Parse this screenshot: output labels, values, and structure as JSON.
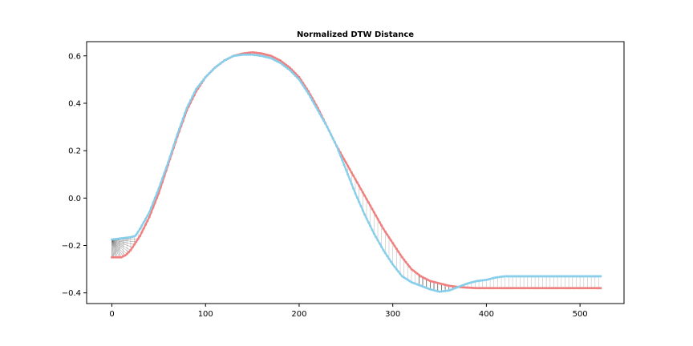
{
  "chart_data": {
    "type": "line",
    "title": "Normalized DTW Distance",
    "xlabel": "",
    "ylabel": "",
    "xlim": [
      -27,
      547
    ],
    "ylim": [
      -0.445,
      0.66
    ],
    "xticks": [
      0,
      100,
      200,
      300,
      400,
      500
    ],
    "yticks": [
      -0.4,
      -0.2,
      0.0,
      0.2,
      0.4,
      0.6
    ],
    "grid": false,
    "legend": "none",
    "colors": {
      "series_a": "#f08080",
      "series_b": "#87ceeb",
      "alignment": "#bbbbbb",
      "alignment_dense": "#222222"
    },
    "series": [
      {
        "x": [
          0,
          10,
          15,
          20,
          25,
          30,
          40,
          50,
          60,
          70,
          80,
          90,
          100,
          110,
          120,
          130,
          140,
          150,
          160,
          170,
          180,
          190,
          200,
          210,
          220,
          230,
          240,
          250,
          260,
          270,
          280,
          290,
          300,
          310,
          320,
          330,
          340,
          350,
          360,
          370,
          380,
          390,
          400,
          420,
          450,
          480,
          500,
          522
        ],
        "y": [
          -0.25,
          -0.25,
          -0.24,
          -0.22,
          -0.19,
          -0.16,
          -0.08,
          0.02,
          0.14,
          0.26,
          0.37,
          0.45,
          0.51,
          0.55,
          0.58,
          0.6,
          0.61,
          0.615,
          0.61,
          0.6,
          0.58,
          0.55,
          0.51,
          0.45,
          0.38,
          0.3,
          0.22,
          0.15,
          0.08,
          0.01,
          -0.06,
          -0.13,
          -0.19,
          -0.25,
          -0.3,
          -0.33,
          -0.35,
          -0.36,
          -0.37,
          -0.375,
          -0.378,
          -0.38,
          -0.38,
          -0.38,
          -0.38,
          -0.38,
          -0.38,
          -0.38
        ]
      },
      {
        "x": [
          0,
          10,
          20,
          25,
          30,
          40,
          50,
          60,
          70,
          80,
          90,
          100,
          110,
          120,
          130,
          140,
          150,
          160,
          170,
          180,
          190,
          200,
          210,
          220,
          230,
          240,
          250,
          260,
          270,
          280,
          290,
          300,
          310,
          320,
          330,
          340,
          350,
          360,
          370,
          380,
          390,
          400,
          410,
          420,
          450,
          480,
          500,
          522
        ],
        "y": [
          -0.175,
          -0.17,
          -0.165,
          -0.16,
          -0.13,
          -0.06,
          0.04,
          0.15,
          0.27,
          0.38,
          0.46,
          0.51,
          0.55,
          0.58,
          0.6,
          0.605,
          0.605,
          0.6,
          0.59,
          0.57,
          0.54,
          0.5,
          0.44,
          0.37,
          0.3,
          0.22,
          0.12,
          0.02,
          -0.07,
          -0.15,
          -0.22,
          -0.28,
          -0.33,
          -0.355,
          -0.37,
          -0.385,
          -0.395,
          -0.39,
          -0.375,
          -0.36,
          -0.35,
          -0.345,
          -0.335,
          -0.33,
          -0.33,
          -0.33,
          -0.33,
          -0.33
        ]
      }
    ]
  }
}
